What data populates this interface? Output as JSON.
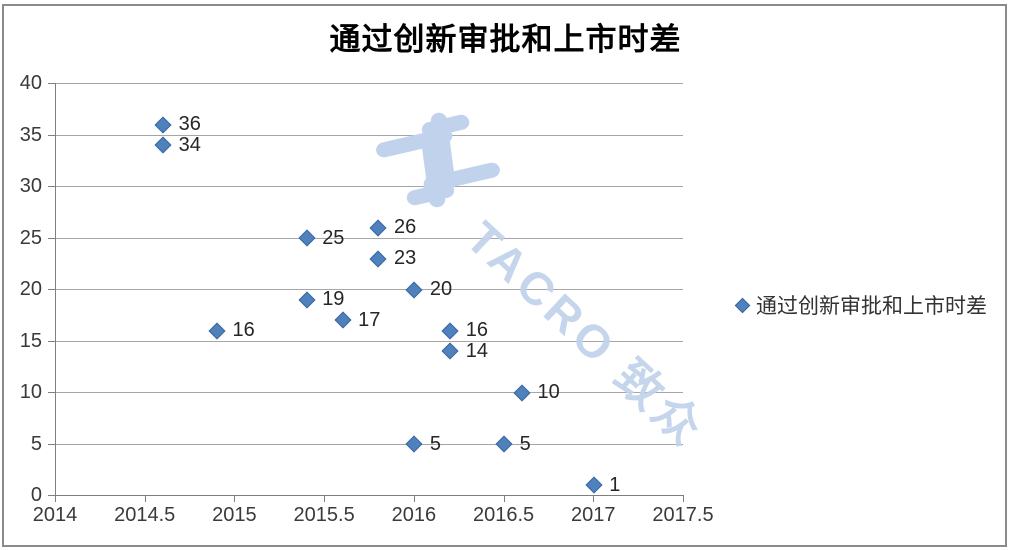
{
  "title": "通过创新审批和上市时差",
  "legend": {
    "label": "通过创新审批和上市时差"
  },
  "watermark": {
    "text": "TACRO 致众"
  },
  "chart_data": {
    "type": "scatter",
    "title": "通过创新审批和上市时差",
    "series": [
      {
        "name": "通过创新审批和上市时差",
        "points": [
          {
            "x": 2014.6,
            "y": 36,
            "label": "36"
          },
          {
            "x": 2014.6,
            "y": 34,
            "label": "34"
          },
          {
            "x": 2014.9,
            "y": 16,
            "label": "16"
          },
          {
            "x": 2015.4,
            "y": 25,
            "label": "25"
          },
          {
            "x": 2015.4,
            "y": 19,
            "label": "19"
          },
          {
            "x": 2015.6,
            "y": 17,
            "label": "17"
          },
          {
            "x": 2015.8,
            "y": 26,
            "label": "26"
          },
          {
            "x": 2015.8,
            "y": 23,
            "label": "23"
          },
          {
            "x": 2016.0,
            "y": 20,
            "label": "20"
          },
          {
            "x": 2016.0,
            "y": 5,
            "label": "5"
          },
          {
            "x": 2016.2,
            "y": 16,
            "label": "16"
          },
          {
            "x": 2016.2,
            "y": 14,
            "label": "14"
          },
          {
            "x": 2016.5,
            "y": 5,
            "label": "5"
          },
          {
            "x": 2016.6,
            "y": 10,
            "label": "10"
          },
          {
            "x": 2017.0,
            "y": 1,
            "label": "1"
          }
        ]
      }
    ],
    "xlim": [
      2014,
      2017.5
    ],
    "ylim": [
      0,
      40
    ],
    "x_ticks": [
      2014,
      2014.5,
      2015,
      2015.5,
      2016,
      2016.5,
      2017,
      2017.5
    ],
    "y_ticks": [
      0,
      5,
      10,
      15,
      20,
      25,
      30,
      35,
      40
    ],
    "grid": "horizontal",
    "legend_position": "right",
    "marker_shape": "diamond",
    "colors": {
      "marker_fill": "#4F81BD",
      "marker_border": "#3A679C",
      "gridline": "#A6A6A6",
      "axis": "#7F7F7F",
      "label_text": "#262626",
      "watermark": "#C1D3EC"
    }
  }
}
